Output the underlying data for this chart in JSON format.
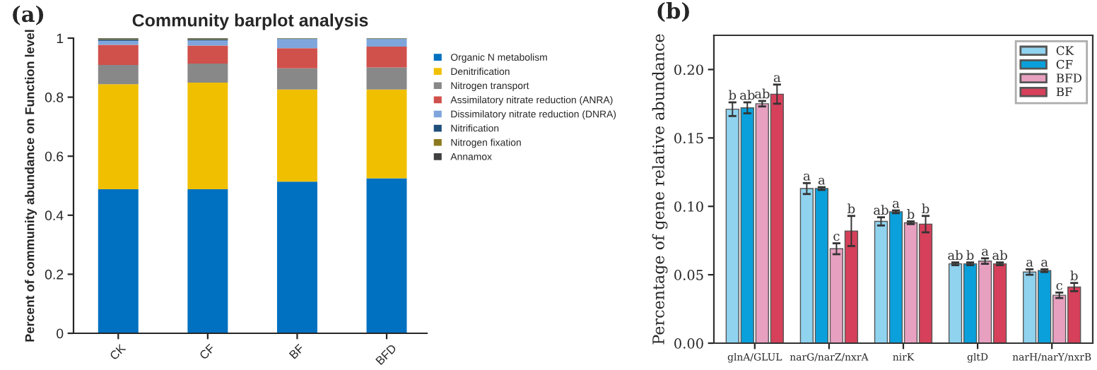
{
  "chart_data": [
    {
      "type": "bar",
      "stacked": true,
      "title": "Community barplot analysis",
      "ylabel": "Percent of community abundance on Function level",
      "annotations": [
        "(a)"
      ],
      "categories": [
        "CK",
        "CF",
        "BF",
        "BFD"
      ],
      "ylim": [
        0,
        1
      ],
      "yticks": [
        0,
        0.2,
        0.4,
        0.6,
        0.8,
        1
      ],
      "legend": "right",
      "grid": false,
      "series": [
        {
          "name": "Organic N metabolism",
          "color": "#0070c0",
          "values": [
            0.488,
            0.488,
            0.514,
            0.525
          ]
        },
        {
          "name": "Denitrification",
          "color": "#f0c000",
          "values": [
            0.356,
            0.361,
            0.312,
            0.301
          ]
        },
        {
          "name": "Nitrogen transport",
          "color": "#888888",
          "values": [
            0.065,
            0.065,
            0.072,
            0.075
          ]
        },
        {
          "name": "Assimilatory nitrate reduction (ANRA)",
          "color": "#d0504c",
          "values": [
            0.068,
            0.061,
            0.068,
            0.07
          ]
        },
        {
          "name": "Dissimilatory nitrate reduction (DNRA)",
          "color": "#7fa6dc",
          "values": [
            0.014,
            0.017,
            0.031,
            0.026
          ]
        },
        {
          "name": "Nitrification",
          "color": "#1f4e79",
          "values": [
            0.005,
            0.004,
            0.002,
            0.002
          ]
        },
        {
          "name": "Nitrogen fixation",
          "color": "#8c7a1e",
          "values": [
            0.002,
            0.002,
            0.001,
            0.001
          ]
        },
        {
          "name": "Annamox",
          "color": "#404040",
          "values": [
            0.002,
            0.002,
            0.001,
            0.001
          ]
        }
      ]
    },
    {
      "type": "bar",
      "ylabel": "Percentage of gene relative abundance",
      "annotations": [
        "(b)"
      ],
      "categories": [
        "glnA/GLUL",
        "narG/narZ/nxrA",
        "nirK",
        "gltD",
        "narH/narY/nxrB"
      ],
      "ylim": [
        0,
        0.225
      ],
      "yticks": [
        {
          "value": 0,
          "label": "0.00"
        },
        {
          "value": 0.05,
          "label": "0.05"
        },
        {
          "value": 0.1,
          "label": "0.10"
        },
        {
          "value": 0.15,
          "label": "0.15"
        },
        {
          "value": 0.2,
          "label": "0.20"
        }
      ],
      "legend": "top right",
      "grid": false,
      "series": [
        {
          "name": "CK",
          "color": "#8fd3ef",
          "values": [
            0.171,
            0.113,
            0.089,
            0.058,
            0.052
          ],
          "errors": [
            0.005,
            0.004,
            0.003,
            0.001,
            0.002
          ],
          "value_labels": [
            "b",
            "a",
            "ab",
            "ab",
            "a"
          ]
        },
        {
          "name": "CF",
          "color": "#0aa0dc",
          "values": [
            0.172,
            0.113,
            0.096,
            0.058,
            0.053
          ],
          "errors": [
            0.004,
            0.001,
            0.001,
            0.001,
            0.001
          ],
          "value_labels": [
            "ab",
            "a",
            "a",
            "b",
            "a"
          ]
        },
        {
          "name": "BFD",
          "color": "#e8a0c0",
          "values": [
            0.175,
            0.069,
            0.088,
            0.06,
            0.035
          ],
          "errors": [
            0.002,
            0.004,
            0.001,
            0.002,
            0.002
          ],
          "value_labels": [
            "ab",
            "c",
            "b",
            "a",
            "c"
          ]
        },
        {
          "name": "BF",
          "color": "#d6405a",
          "values": [
            0.182,
            0.082,
            0.087,
            0.058,
            0.041
          ],
          "errors": [
            0.007,
            0.011,
            0.006,
            0.001,
            0.003
          ],
          "value_labels": [
            "a",
            "b",
            "b",
            "ab",
            "b"
          ]
        }
      ]
    }
  ]
}
